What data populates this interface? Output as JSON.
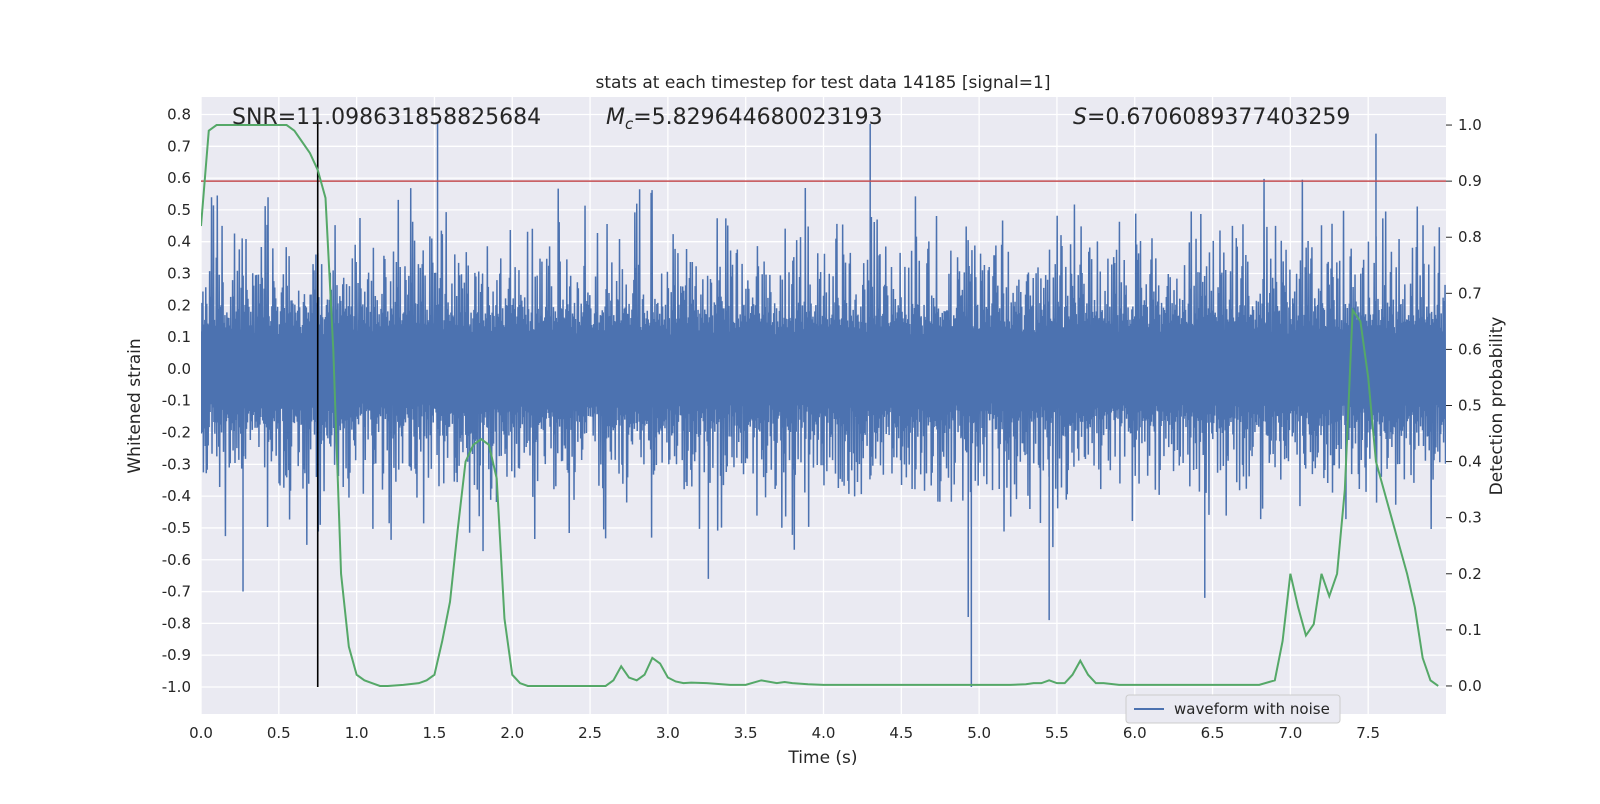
{
  "chart_data": {
    "type": "line",
    "title": "stats at each timestep for test data 14185 [signal=1]",
    "xlabel": "Time (s)",
    "ylabel": "Whitened strain",
    "y2label": "Detection probability",
    "xlim": [
      0.0,
      8.0
    ],
    "ylim": [
      -1.085,
      0.855
    ],
    "y2lim": [
      -0.05,
      1.05
    ],
    "xticks": [
      0.0,
      0.5,
      1.0,
      1.5,
      2.0,
      2.5,
      3.0,
      3.5,
      4.0,
      4.5,
      5.0,
      5.5,
      6.0,
      6.5,
      7.0,
      7.5
    ],
    "xtick_labels": [
      "0.0",
      "0.5",
      "1.0",
      "1.5",
      "2.0",
      "2.5",
      "3.0",
      "3.5",
      "4.0",
      "4.5",
      "5.0",
      "5.5",
      "6.0",
      "6.5",
      "7.0",
      "7.5"
    ],
    "yticks": [
      0.8,
      0.7,
      0.6,
      0.5,
      0.4,
      0.3,
      0.2,
      0.1,
      0.0,
      -0.1,
      -0.2,
      -0.3,
      -0.4,
      -0.5,
      -0.6,
      -0.7,
      -0.8,
      -0.9,
      -1.0
    ],
    "ytick_labels": [
      "0.8",
      "0.7",
      "0.6",
      "0.5",
      "0.4",
      "0.3",
      "0.2",
      "0.1",
      "0.0",
      "-0.1",
      "-0.2",
      "-0.3",
      "-0.4",
      "-0.5",
      "-0.6",
      "-0.7",
      "-0.8",
      "-0.9",
      "-1.0"
    ],
    "y2ticks": [
      1.0,
      0.9,
      0.8,
      0.7,
      0.6,
      0.5,
      0.4,
      0.3,
      0.2,
      0.1,
      0.0
    ],
    "y2tick_labels": [
      "1.0",
      "0.9",
      "0.8",
      "0.7",
      "0.6",
      "0.5",
      "0.4",
      "0.3",
      "0.2",
      "0.1",
      "0.0"
    ],
    "annotations": {
      "snr": "SNR=11.098631858825684",
      "mc_symbol": "M",
      "mc_sub": "c",
      "mc_value": "=5.829644680023193",
      "s_symbol": "S",
      "s_value": "=0.6706089377403259"
    },
    "threshold_line": {
      "axis": "y2",
      "value": 0.9,
      "color": "#c44e52"
    },
    "marker_line": {
      "x": 0.75,
      "y_from": -1.0,
      "y_to": 0.8,
      "color": "#000000"
    },
    "grid": true,
    "background": "#eaeaf2",
    "legend": {
      "position": "lower-right",
      "entries": [
        "waveform with noise"
      ]
    },
    "series": [
      {
        "name": "waveform with noise",
        "axis": "y",
        "color": "#4c72b0",
        "style": "dense noise, approx. band ±0.23 with spikes",
        "x_range": [
          0.0,
          8.0
        ],
        "spikes": [
          {
            "x": 0.27,
            "y": -0.7
          },
          {
            "x": 1.52,
            "y": 0.77
          },
          {
            "x": 3.26,
            "y": -0.66
          },
          {
            "x": 4.3,
            "y": 0.77
          },
          {
            "x": 4.93,
            "y": -0.78
          },
          {
            "x": 4.95,
            "y": -1.0
          },
          {
            "x": 5.45,
            "y": -0.79
          },
          {
            "x": 6.45,
            "y": -0.72
          },
          {
            "x": 7.55,
            "y": 0.74
          }
        ]
      },
      {
        "name": "",
        "axis": "y2",
        "color": "#55a868",
        "x": [
          0.0,
          0.05,
          0.1,
          0.15,
          0.25,
          0.35,
          0.45,
          0.55,
          0.6,
          0.65,
          0.7,
          0.75,
          0.8,
          0.85,
          0.9,
          0.95,
          1.0,
          1.05,
          1.1,
          1.15,
          1.2,
          1.3,
          1.4,
          1.45,
          1.5,
          1.55,
          1.6,
          1.65,
          1.7,
          1.75,
          1.8,
          1.85,
          1.9,
          1.95,
          2.0,
          2.05,
          2.1,
          2.15,
          2.25,
          2.4,
          2.6,
          2.65,
          2.7,
          2.75,
          2.8,
          2.85,
          2.9,
          2.95,
          3.0,
          3.05,
          3.1,
          3.15,
          3.25,
          3.4,
          3.5,
          3.6,
          3.7,
          3.75,
          3.8,
          3.9,
          4.0,
          4.2,
          4.4,
          4.6,
          4.8,
          5.0,
          5.2,
          5.3,
          5.35,
          5.4,
          5.45,
          5.5,
          5.55,
          5.6,
          5.65,
          5.7,
          5.75,
          5.8,
          5.9,
          6.0,
          6.2,
          6.4,
          6.6,
          6.8,
          6.9,
          6.95,
          7.0,
          7.05,
          7.1,
          7.15,
          7.2,
          7.25,
          7.3,
          7.35,
          7.4,
          7.45,
          7.5,
          7.55,
          7.6,
          7.65,
          7.7,
          7.75,
          7.8,
          7.85,
          7.9,
          7.95
        ],
        "values": [
          0.82,
          0.99,
          1.0,
          1.0,
          1.0,
          1.0,
          1.0,
          1.0,
          0.99,
          0.97,
          0.95,
          0.92,
          0.87,
          0.6,
          0.2,
          0.07,
          0.02,
          0.01,
          0.005,
          0.0,
          0.0,
          0.002,
          0.005,
          0.01,
          0.02,
          0.08,
          0.15,
          0.28,
          0.4,
          0.43,
          0.44,
          0.43,
          0.37,
          0.12,
          0.02,
          0.005,
          0.0,
          0.0,
          0.0,
          0.0,
          0.0,
          0.01,
          0.035,
          0.015,
          0.01,
          0.02,
          0.05,
          0.04,
          0.015,
          0.008,
          0.005,
          0.006,
          0.005,
          0.002,
          0.002,
          0.01,
          0.005,
          0.007,
          0.005,
          0.003,
          0.002,
          0.002,
          0.002,
          0.002,
          0.002,
          0.002,
          0.002,
          0.003,
          0.005,
          0.005,
          0.01,
          0.005,
          0.005,
          0.02,
          0.045,
          0.02,
          0.005,
          0.005,
          0.002,
          0.002,
          0.002,
          0.002,
          0.002,
          0.002,
          0.01,
          0.08,
          0.2,
          0.14,
          0.09,
          0.11,
          0.2,
          0.16,
          0.2,
          0.35,
          0.67,
          0.65,
          0.55,
          0.4,
          0.35,
          0.3,
          0.25,
          0.2,
          0.14,
          0.05,
          0.01,
          0.0
        ]
      }
    ]
  }
}
